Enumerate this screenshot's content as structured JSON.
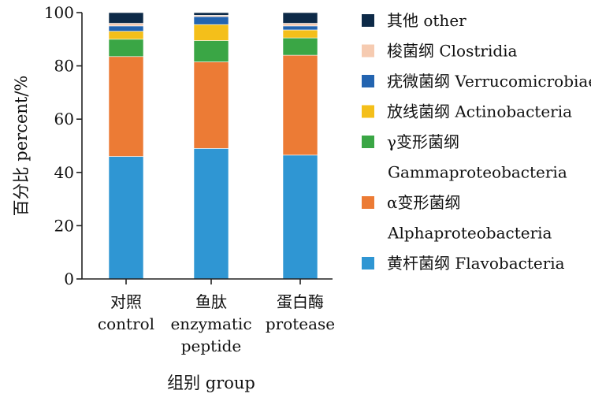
{
  "chart_data": {
    "type": "bar",
    "stacked": true,
    "ylabel": "百分比 percent/%",
    "xlabel": "组别 group",
    "ylim": [
      0,
      100
    ],
    "yticks": [
      0,
      20,
      40,
      60,
      80,
      100
    ],
    "grid": false,
    "legend_position": "right",
    "categories": [
      [
        "对照",
        "control"
      ],
      [
        "鱼肽",
        "enzymatic",
        "peptide"
      ],
      [
        "蛋白酶",
        "protease"
      ]
    ],
    "series": [
      {
        "name": [
          "黄杆菌纲 Flavobacteria"
        ],
        "color": "#2f96d3",
        "values": [
          46,
          49,
          46.5
        ]
      },
      {
        "name": [
          "α变形菌纲",
          "Alphaproteobacteria"
        ],
        "color": "#ec7b35",
        "values": [
          37.5,
          32.5,
          37.5
        ]
      },
      {
        "name": [
          "γ变形菌纲",
          "Gammaproteobacteria"
        ],
        "color": "#3aa645",
        "values": [
          6.5,
          8,
          6.5
        ]
      },
      {
        "name": [
          "放线菌纲 Actinobacteria"
        ],
        "color": "#f4bf1a",
        "values": [
          3,
          6,
          3
        ]
      },
      {
        "name": [
          "疣微菌纲 Verrucomicrobiae"
        ],
        "color": "#2364b0",
        "values": [
          2,
          3,
          1.5
        ]
      },
      {
        "name": [
          "梭菌纲 Clostridia"
        ],
        "color": "#f6cbb1",
        "values": [
          1,
          0.5,
          1
        ]
      },
      {
        "name": [
          "其他 other"
        ],
        "color": "#0d2a48",
        "values": [
          4,
          1,
          4
        ]
      }
    ]
  }
}
